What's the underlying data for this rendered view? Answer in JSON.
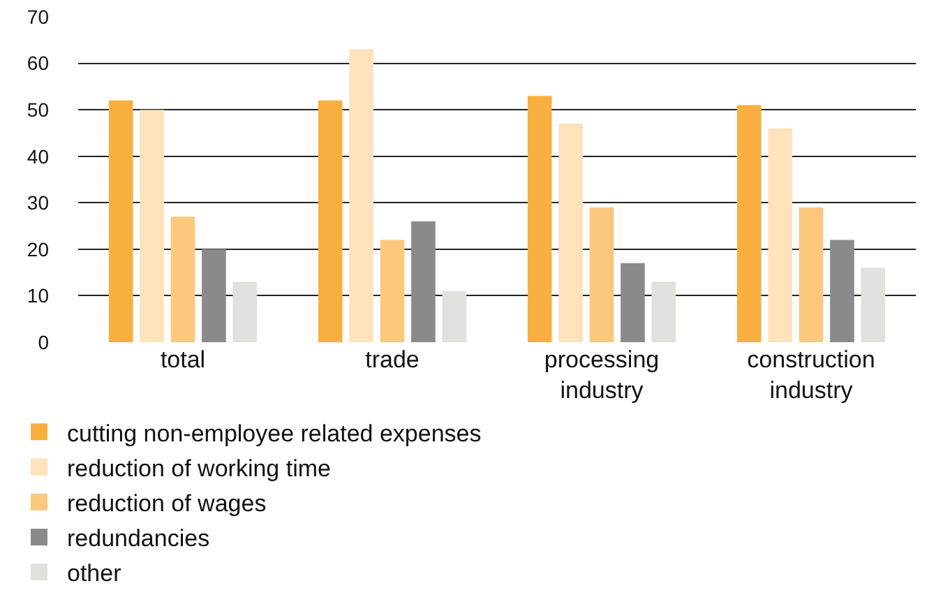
{
  "chart_data": {
    "type": "bar",
    "categories": [
      "total",
      "trade",
      "processing industry",
      "construction industry"
    ],
    "series": [
      {
        "name": "cutting non-employee related expenses",
        "color": "#f7b040",
        "values": [
          52,
          52,
          53,
          51
        ]
      },
      {
        "name": "reduction of working time",
        "color": "#fde2bb",
        "values": [
          50,
          63,
          47,
          46
        ]
      },
      {
        "name": "reduction of wages",
        "color": "#fcc87e",
        "values": [
          27,
          22,
          29,
          29
        ]
      },
      {
        "name": "redundancies",
        "color": "#8a8a8a",
        "values": [
          20,
          26,
          17,
          22
        ]
      },
      {
        "name": "other",
        "color": "#e0e0dc",
        "values": [
          13,
          11,
          13,
          16
        ]
      }
    ],
    "ylim": [
      0,
      70
    ],
    "yticks": [
      0,
      10,
      20,
      30,
      40,
      50,
      60,
      70
    ],
    "grid": "y",
    "legend": "bottom"
  }
}
